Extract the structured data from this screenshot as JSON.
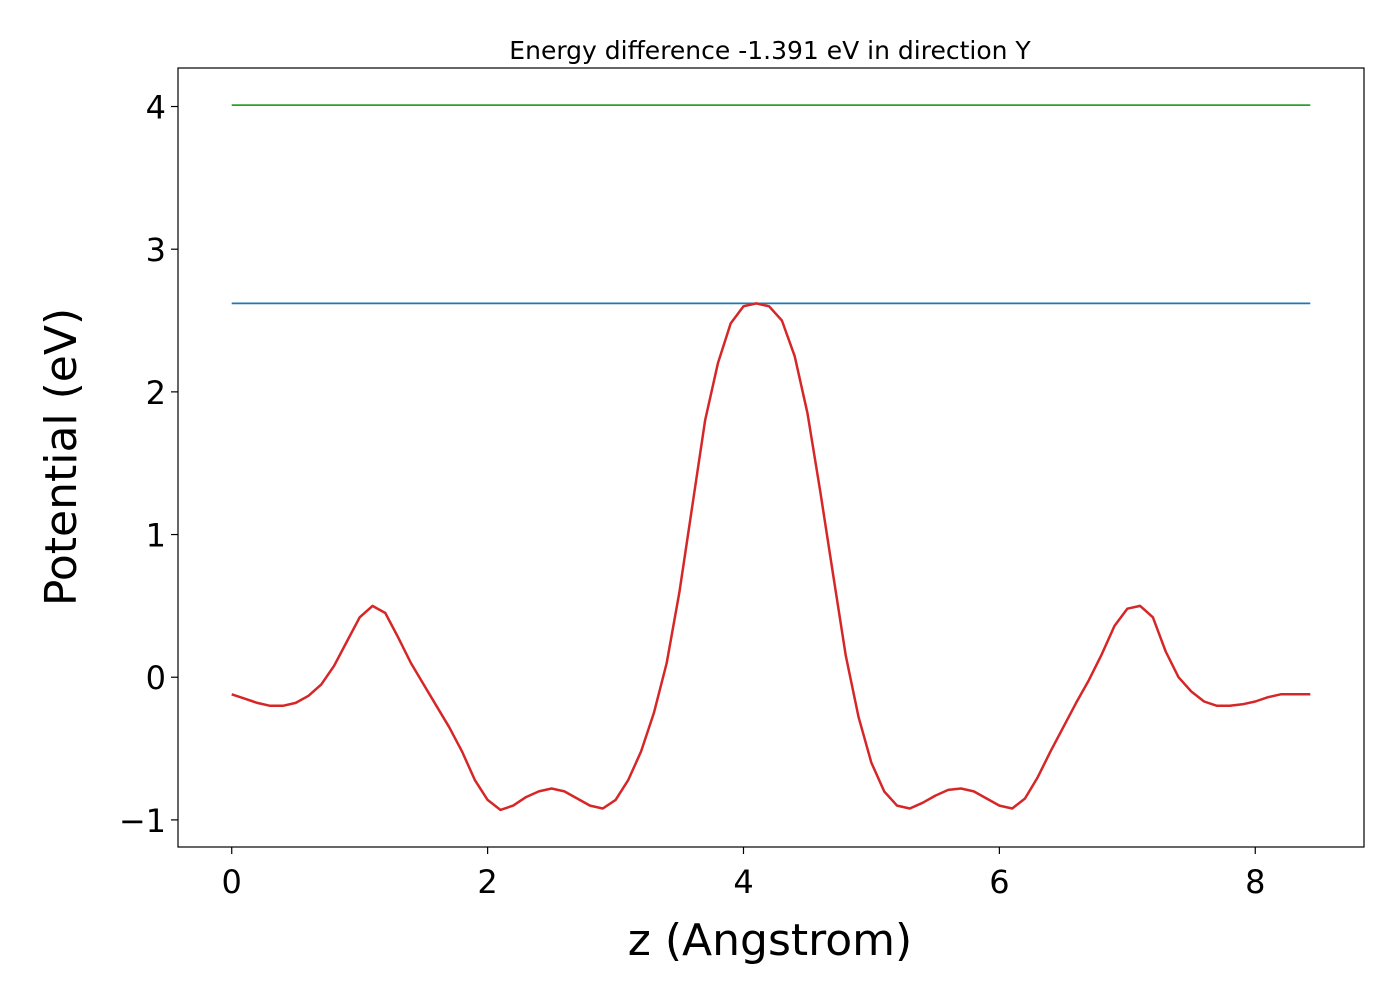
{
  "chart_data": {
    "type": "line",
    "title": "Energy difference -1.391 eV in direction Y",
    "xlabel": "z (Angstrom)",
    "ylabel": "Potential (eV)",
    "xlim": [
      -0.42,
      8.85
    ],
    "ylim": [
      -1.19,
      4.27
    ],
    "xticks": [
      0,
      2,
      4,
      6,
      8
    ],
    "xtick_labels": [
      "0",
      "2",
      "4",
      "6",
      "8"
    ],
    "yticks": [
      -1,
      0,
      1,
      2,
      3,
      4
    ],
    "ytick_labels": [
      "−1",
      "0",
      "1",
      "2",
      "3",
      "4"
    ],
    "grid": false,
    "legend": "none",
    "series": [
      {
        "color": "#2ca02c",
        "x": [
          0,
          8.43
        ],
        "y": [
          4.01,
          4.01
        ]
      },
      {
        "color": "#1f77b4",
        "x": [
          0,
          8.43
        ],
        "y": [
          2.62,
          2.62
        ]
      },
      {
        "color": "#d62728",
        "x": [
          0,
          0.1,
          0.2,
          0.3,
          0.4,
          0.5,
          0.6,
          0.7,
          0.8,
          0.9,
          1.0,
          1.1,
          1.2,
          1.3,
          1.4,
          1.5,
          1.6,
          1.7,
          1.8,
          1.9,
          2.0,
          2.1,
          2.2,
          2.3,
          2.4,
          2.5,
          2.6,
          2.7,
          2.8,
          2.9,
          3.0,
          3.1,
          3.2,
          3.3,
          3.4,
          3.5,
          3.6,
          3.7,
          3.8,
          3.9,
          4.0,
          4.1,
          4.2,
          4.3,
          4.4,
          4.5,
          4.6,
          4.7,
          4.8,
          4.9,
          5.0,
          5.1,
          5.2,
          5.3,
          5.4,
          5.5,
          5.6,
          5.7,
          5.8,
          5.9,
          6.0,
          6.1,
          6.2,
          6.3,
          6.4,
          6.5,
          6.6,
          6.7,
          6.8,
          6.9,
          7.0,
          7.1,
          7.2,
          7.3,
          7.4,
          7.5,
          7.6,
          7.7,
          7.8,
          7.9,
          8.0,
          8.1,
          8.2,
          8.3,
          8.43
        ],
        "y": [
          -0.12,
          -0.15,
          -0.18,
          -0.2,
          -0.2,
          -0.18,
          -0.13,
          -0.05,
          0.08,
          0.25,
          0.42,
          0.5,
          0.45,
          0.28,
          0.1,
          -0.05,
          -0.2,
          -0.35,
          -0.52,
          -0.72,
          -0.86,
          -0.93,
          -0.9,
          -0.84,
          -0.8,
          -0.78,
          -0.8,
          -0.85,
          -0.9,
          -0.92,
          -0.86,
          -0.72,
          -0.52,
          -0.25,
          0.1,
          0.6,
          1.2,
          1.8,
          2.2,
          2.48,
          2.6,
          2.62,
          2.6,
          2.5,
          2.25,
          1.85,
          1.3,
          0.72,
          0.15,
          -0.28,
          -0.6,
          -0.8,
          -0.9,
          -0.92,
          -0.88,
          -0.83,
          -0.79,
          -0.78,
          -0.8,
          -0.85,
          -0.9,
          -0.92,
          -0.85,
          -0.7,
          -0.52,
          -0.35,
          -0.18,
          -0.02,
          0.16,
          0.36,
          0.48,
          0.5,
          0.42,
          0.18,
          0.0,
          -0.1,
          -0.17,
          -0.2,
          -0.2,
          -0.19,
          -0.17,
          -0.14,
          -0.12,
          -0.12,
          -0.12
        ]
      }
    ]
  }
}
